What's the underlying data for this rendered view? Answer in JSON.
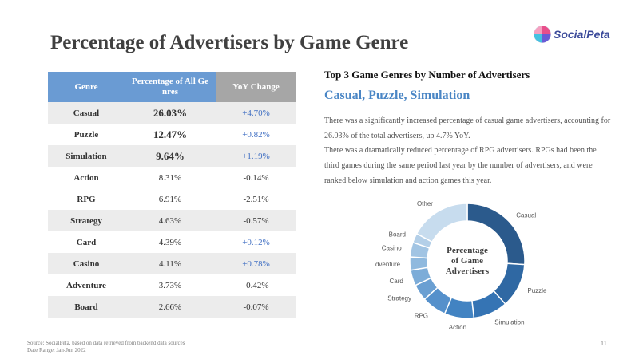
{
  "title": "Percentage of Advertisers by Game Genre",
  "brand": {
    "name": "SocialPeta"
  },
  "table": {
    "headers": {
      "genre": "Genre",
      "pct": "Percentage of All Ge nres",
      "yoy": "YoY Change"
    },
    "rows": [
      {
        "genre": "Casual",
        "pct": "26.03%",
        "yoy": "+4.70%"
      },
      {
        "genre": "Puzzle",
        "pct": "12.47%",
        "yoy": "+0.82%"
      },
      {
        "genre": "Simulation",
        "pct": "9.64%",
        "yoy": "+1.19%"
      },
      {
        "genre": "Action",
        "pct": "8.31%",
        "yoy": "-0.14%"
      },
      {
        "genre": "RPG",
        "pct": "6.91%",
        "yoy": "-2.51%"
      },
      {
        "genre": "Strategy",
        "pct": "4.63%",
        "yoy": "-0.57%"
      },
      {
        "genre": "Card",
        "pct": "4.39%",
        "yoy": "+0.12%"
      },
      {
        "genre": "Casino",
        "pct": "4.11%",
        "yoy": "+0.78%"
      },
      {
        "genre": "Adventure",
        "pct": "3.73%",
        "yoy": "-0.42%"
      },
      {
        "genre": "Board",
        "pct": "2.66%",
        "yoy": "-0.07%"
      }
    ]
  },
  "insights": {
    "subhead": "Top 3 Game Genres by Number of Advertisers",
    "highlight": "Casual, Puzzle, Simulation",
    "para1": "There was a significantly increased percentage of casual game advertisers, accounting for 26.03% of the total advertisers, up 4.7% YoY.",
    "para2": "There was a dramatically reduced percentage of RPG advertisers. RPGs had been the third games during the same period last year by the number of advertisers, and were ranked below simulation and action games this year."
  },
  "chart_data": {
    "type": "pie",
    "title": "Percentage of Game Advertisers",
    "title_lines": [
      "Percentage",
      "of Game",
      "Advertisers"
    ],
    "categories": [
      "Casual",
      "Puzzle",
      "Simulation",
      "Action",
      "RPG",
      "Strategy",
      "Card",
      "Adventure",
      "Casino",
      "Board",
      "Other"
    ],
    "values": [
      26.03,
      12.47,
      9.64,
      8.31,
      6.91,
      4.63,
      4.39,
      3.73,
      4.11,
      2.66,
      17.12
    ],
    "colors": [
      "#2b5a8c",
      "#2f68a3",
      "#3574b4",
      "#4283c2",
      "#5590cb",
      "#6a9fd2",
      "#7cacd8",
      "#8fb9de",
      "#a1c4e3",
      "#b3cfe8",
      "#c7dcee"
    ],
    "legend": "none",
    "labels_outside": true
  },
  "footer": {
    "source": "Source: SocialPeta, based on data retrieved from backend data sources",
    "date_range": "Date Range: Jan-Jun 2022",
    "page_number": "11"
  }
}
